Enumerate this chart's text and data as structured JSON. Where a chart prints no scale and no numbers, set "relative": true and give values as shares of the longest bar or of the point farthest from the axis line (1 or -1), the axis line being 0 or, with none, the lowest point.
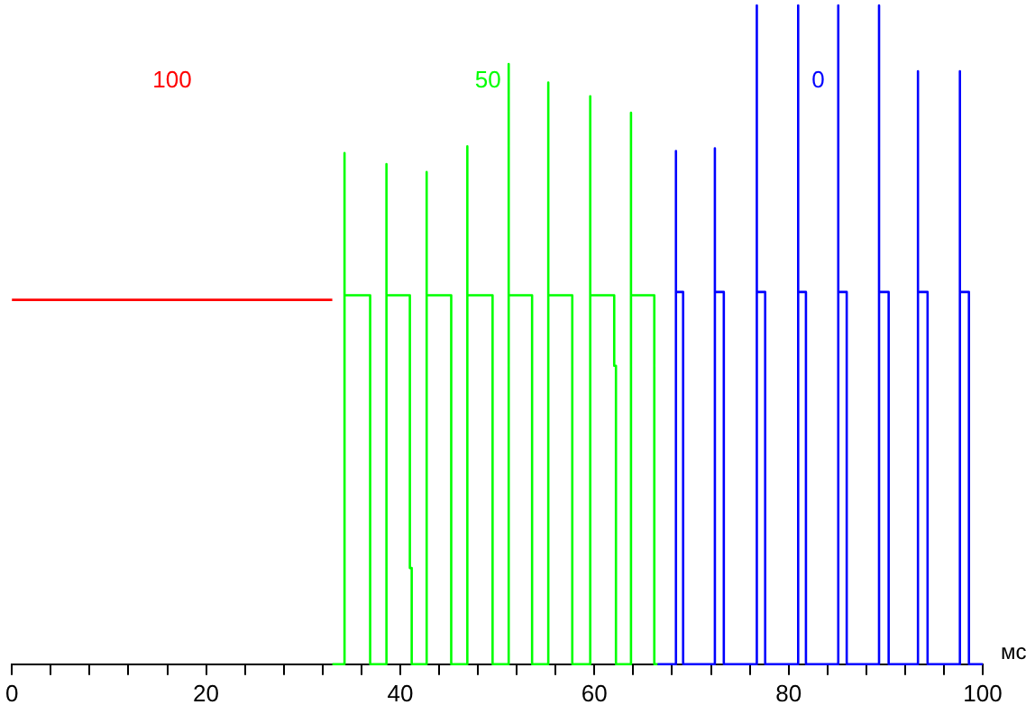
{
  "chart_data": {
    "type": "line",
    "relative": true,
    "xlabel": "мс",
    "xlim": [
      0,
      100
    ],
    "xticks": [
      0,
      {
        "value": 4,
        "label": null
      },
      {
        "value": 8,
        "label": null
      },
      {
        "value": 12,
        "label": null
      },
      {
        "value": 16,
        "label": null
      },
      20,
      {
        "value": 24,
        "label": null
      },
      {
        "value": 28,
        "label": null
      },
      {
        "value": 32,
        "label": null
      },
      {
        "value": 36,
        "label": null
      },
      40,
      {
        "value": 44,
        "label": null
      },
      {
        "value": 48,
        "label": null
      },
      {
        "value": 52,
        "label": null
      },
      {
        "value": 56,
        "label": null
      },
      60,
      {
        "value": 64,
        "label": null
      },
      {
        "value": 68,
        "label": null
      },
      {
        "value": 72,
        "label": null
      },
      {
        "value": 76,
        "label": null
      },
      80,
      {
        "value": 84,
        "label": null
      },
      {
        "value": 88,
        "label": null
      },
      {
        "value": 92,
        "label": null
      },
      {
        "value": 96,
        "label": null
      },
      100
    ],
    "marker": "none",
    "line_style": "solid",
    "series": [
      {
        "name": "100",
        "color": "#ff0000",
        "x": [
          0,
          33
        ],
        "values": [
          0.553,
          0.553
        ]
      },
      {
        "name": "50",
        "color": "#00ff00",
        "x": [
          33,
          34.26,
          34.26,
          34.26,
          36.9,
          36.9,
          38.58,
          38.58,
          38.58,
          40.99,
          40.99,
          41.18,
          41.18,
          42.72,
          42.72,
          42.72,
          45.25,
          45.25,
          46.91,
          46.91,
          46.91,
          49.51,
          49.51,
          51.17,
          51.17,
          51.17,
          53.58,
          53.58,
          55.25,
          55.25,
          55.25,
          57.72,
          57.72,
          59.57,
          59.57,
          59.57,
          62.04,
          62.04,
          62.22,
          62.22,
          63.77,
          63.77,
          63.77,
          66.17,
          66.17,
          66.5
        ],
        "values": [
          0,
          0,
          0.776,
          0.56,
          0.56,
          0,
          0,
          0.759,
          0.56,
          0.56,
          0.146,
          0.146,
          0,
          0,
          0.747,
          0.56,
          0.56,
          0,
          0,
          0.786,
          0.56,
          0.56,
          0,
          0,
          0.911,
          0.56,
          0.56,
          0,
          0,
          0.883,
          0.56,
          0.56,
          0,
          0,
          0.862,
          0.56,
          0.56,
          0.453,
          0.453,
          0,
          0,
          0.837,
          0.56,
          0.56,
          0,
          0
        ]
      },
      {
        "name": "0",
        "color": "#0000ff",
        "x": [
          66.5,
          68.4,
          68.4,
          68.4,
          69.14,
          69.14,
          72.41,
          72.41,
          72.41,
          73.33,
          73.33,
          76.73,
          76.73,
          76.73,
          77.59,
          77.59,
          80.99,
          80.99,
          80.99,
          81.79,
          81.79,
          85.12,
          85.12,
          85.12,
          85.99,
          85.99,
          89.32,
          89.32,
          89.32,
          90.31,
          90.31,
          93.33,
          93.33,
          93.33,
          94.32,
          94.32,
          97.65,
          97.65,
          97.65,
          98.58,
          98.58,
          100
        ],
        "values": [
          0,
          0,
          0.779,
          0.565,
          0.565,
          0,
          0,
          0.783,
          0.565,
          0.565,
          0,
          0,
          1,
          0.565,
          0.565,
          0,
          0,
          1,
          0.565,
          0.565,
          0,
          0,
          1,
          0.565,
          0.565,
          0,
          0,
          1,
          0.565,
          0.565,
          0,
          0,
          0.9,
          0.565,
          0.565,
          0,
          0,
          0.9,
          0.565,
          0.565,
          0,
          0
        ]
      }
    ]
  }
}
